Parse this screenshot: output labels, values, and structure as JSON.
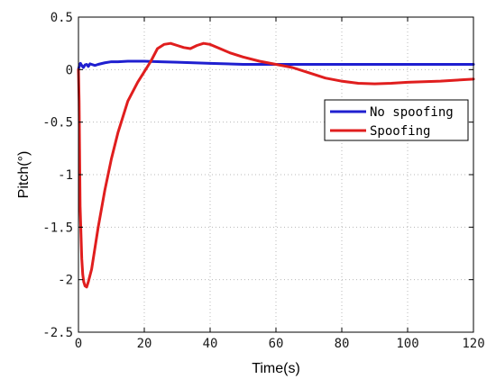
{
  "chart_data": {
    "type": "line",
    "xlabel": "Time(s)",
    "ylabel": "Pitch(°)",
    "xlim": [
      0,
      120
    ],
    "ylim": [
      -2.5,
      0.5
    ],
    "xticks": [
      0,
      20,
      40,
      60,
      80,
      100,
      120
    ],
    "yticks": [
      0.5,
      0,
      -0.5,
      -1,
      -1.5,
      -2,
      -2.5
    ],
    "xtick_labels": [
      "0",
      "20",
      "40",
      "60",
      "80",
      "100",
      "120"
    ],
    "ytick_labels": [
      "0.5",
      "0",
      "-0.5",
      "-1",
      "-1.5",
      "-2",
      "-2.5"
    ],
    "grid": true,
    "legend_position": "right",
    "series": [
      {
        "name": "No spoofing",
        "color": "#1f1fd0",
        "x": [
          0,
          0.3,
          0.6,
          1.0,
          1.5,
          2.0,
          2.5,
          3.0,
          3.5,
          4.0,
          5,
          6,
          8,
          10,
          12,
          15,
          20,
          25,
          30,
          40,
          50,
          60,
          70,
          80,
          90,
          100,
          110,
          120
        ],
        "y": [
          0,
          0.04,
          0.06,
          0.04,
          0.02,
          0.045,
          0.05,
          0.03,
          0.055,
          0.05,
          0.04,
          0.05,
          0.065,
          0.075,
          0.075,
          0.08,
          0.08,
          0.075,
          0.07,
          0.06,
          0.05,
          0.05,
          0.05,
          0.05,
          0.05,
          0.05,
          0.05,
          0.05
        ]
      },
      {
        "name": "Spoofing",
        "color": "#e01e1e",
        "x": [
          0,
          0.2,
          0.5,
          0.8,
          1.0,
          1.3,
          1.6,
          2.0,
          2.5,
          3.0,
          4,
          5,
          6,
          8,
          10,
          12,
          15,
          18,
          20,
          22,
          24,
          26,
          28,
          30,
          32,
          34,
          36,
          38,
          40,
          43,
          46,
          50,
          55,
          60,
          65,
          70,
          75,
          80,
          85,
          90,
          95,
          100,
          105,
          110,
          115,
          120
        ],
        "y": [
          0,
          -0.3,
          -1.3,
          -1.6,
          -1.8,
          -1.95,
          -2.02,
          -2.06,
          -2.07,
          -2.02,
          -1.9,
          -1.7,
          -1.5,
          -1.15,
          -0.85,
          -0.6,
          -0.3,
          -0.12,
          -0.02,
          0.08,
          0.2,
          0.24,
          0.25,
          0.23,
          0.21,
          0.2,
          0.23,
          0.25,
          0.24,
          0.2,
          0.16,
          0.12,
          0.08,
          0.05,
          0.02,
          -0.03,
          -0.08,
          -0.11,
          -0.13,
          -0.135,
          -0.13,
          -0.12,
          -0.115,
          -0.11,
          -0.1,
          -0.09
        ]
      }
    ]
  }
}
